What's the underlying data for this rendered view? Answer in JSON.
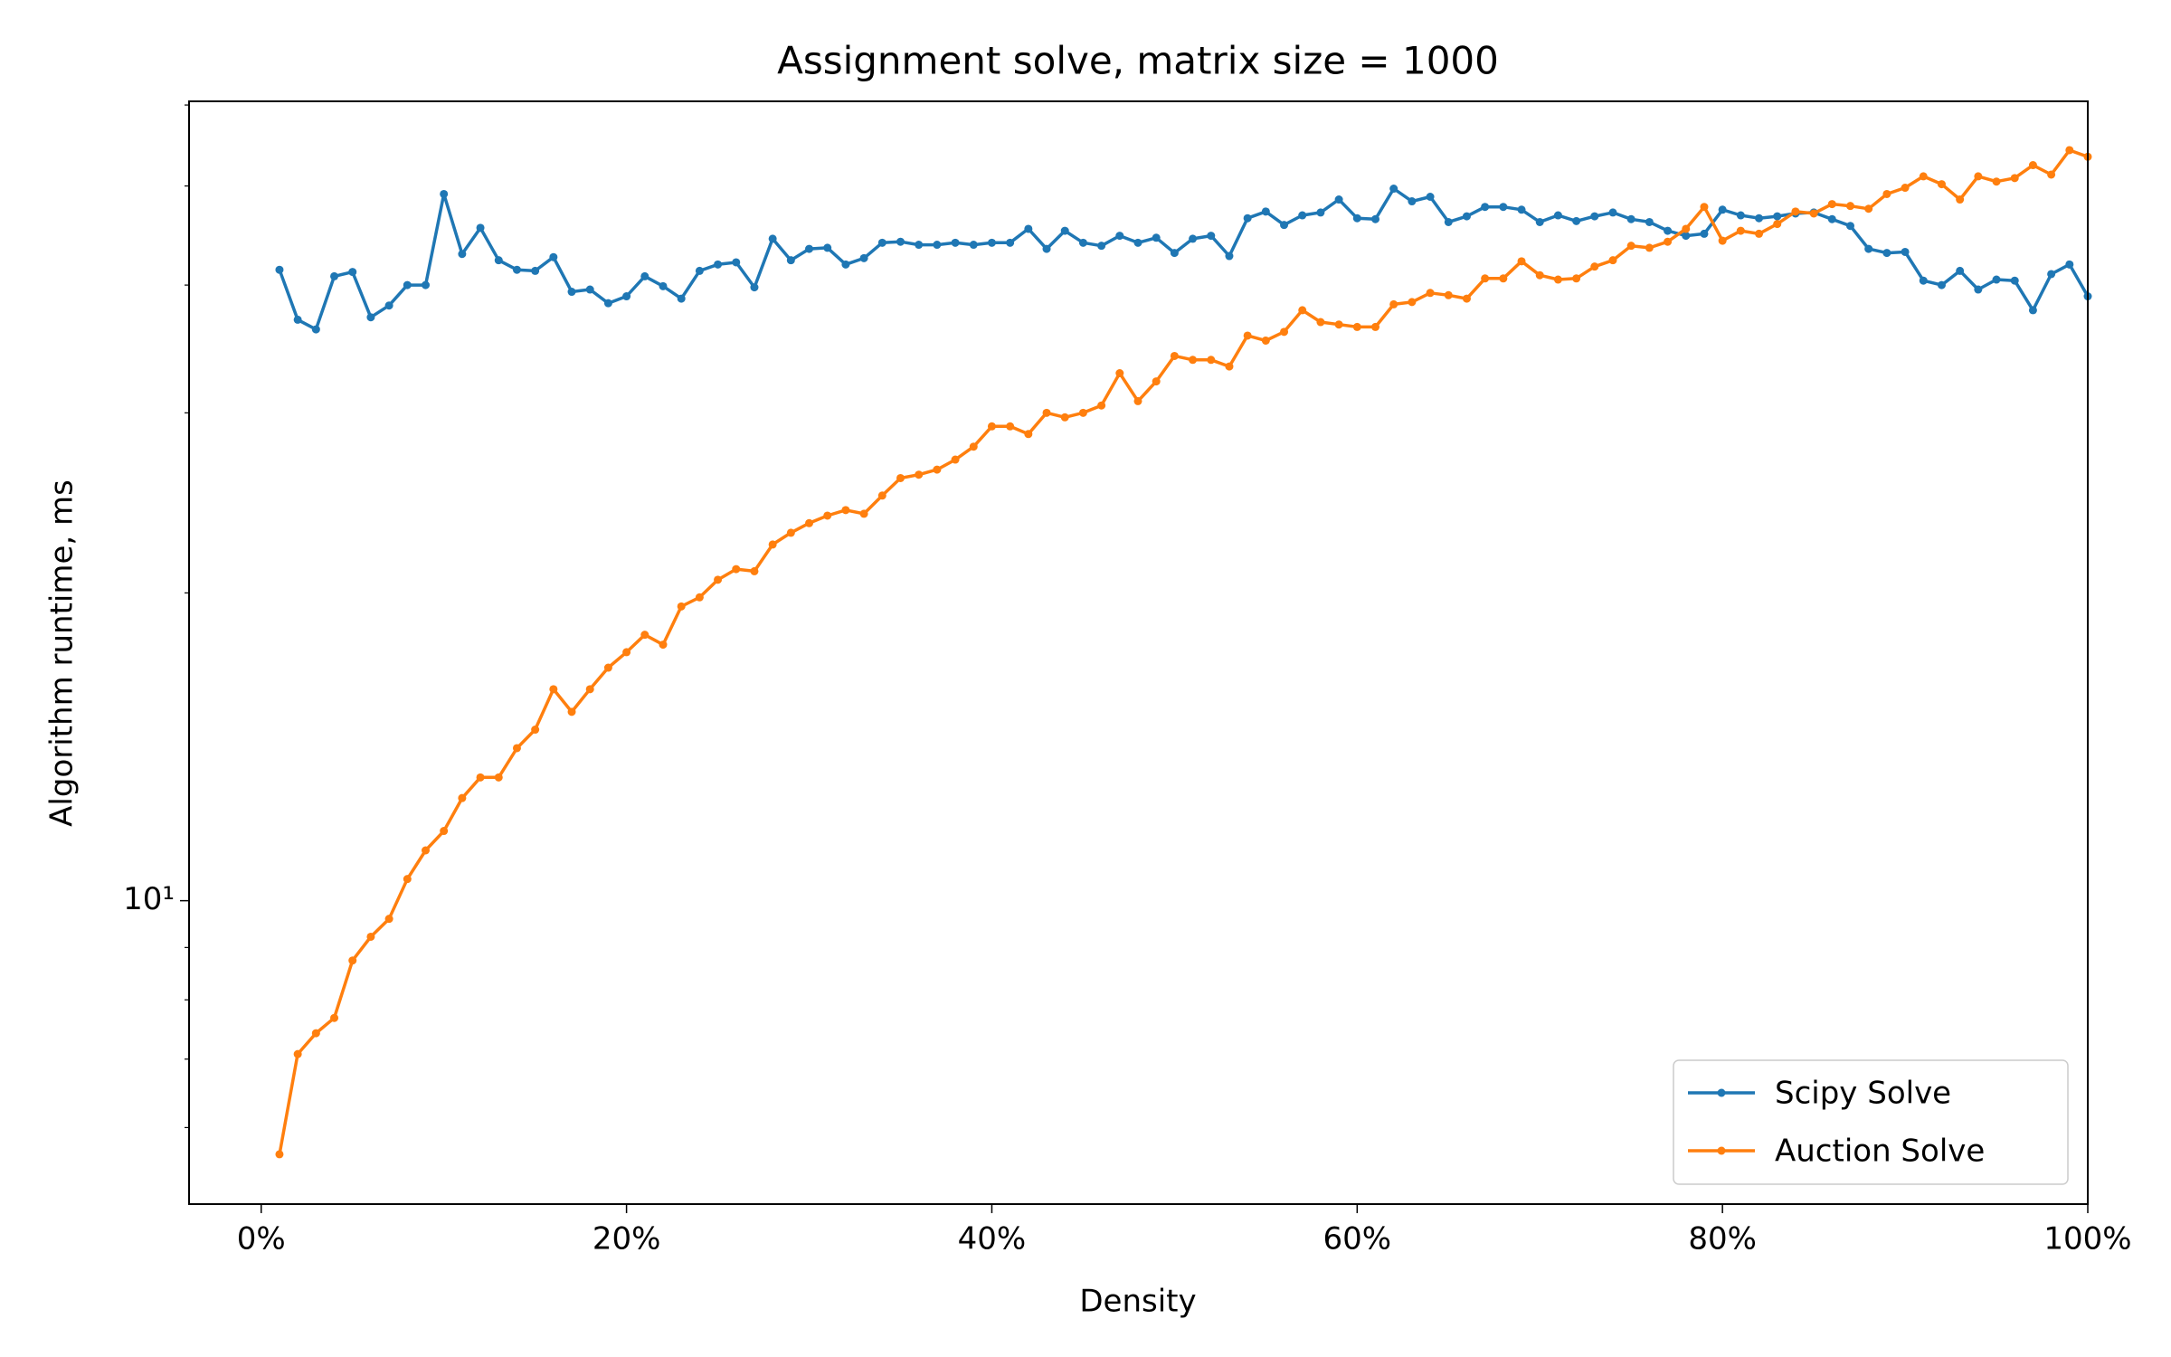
{
  "chart_data": {
    "type": "line",
    "title": "Assignment solve, matrix size = 1000",
    "xlabel": "Density",
    "ylabel": "Algorithm runtime, ms",
    "x": [
      1,
      2,
      3,
      4,
      5,
      6,
      7,
      8,
      9,
      10,
      11,
      12,
      13,
      14,
      15,
      16,
      17,
      18,
      19,
      20,
      21,
      22,
      23,
      24,
      25,
      26,
      27,
      28,
      29,
      30,
      31,
      32,
      33,
      34,
      35,
      36,
      37,
      38,
      39,
      40,
      41,
      42,
      43,
      44,
      45,
      46,
      47,
      48,
      49,
      50,
      51,
      52,
      53,
      54,
      55,
      56,
      57,
      58,
      59,
      60,
      61,
      62,
      63,
      64,
      65,
      66,
      67,
      68,
      69,
      70,
      71,
      72,
      73,
      74,
      75,
      76,
      77,
      78,
      79,
      80,
      81,
      82,
      83,
      84,
      85,
      86,
      87,
      88,
      89,
      90,
      91,
      92,
      93,
      94,
      95,
      96,
      97,
      98,
      99,
      100
    ],
    "series": [
      {
        "name": "Scipy Solve",
        "color": "#1f77b4",
        "values": [
          41.4,
          37.0,
          36.2,
          40.8,
          41.2,
          37.2,
          38.2,
          40.0,
          40.0,
          49.1,
          42.9,
          45.5,
          42.3,
          41.4,
          41.3,
          42.6,
          39.4,
          39.6,
          38.4,
          39.0,
          40.8,
          39.9,
          38.8,
          41.3,
          41.9,
          42.1,
          39.8,
          44.4,
          42.3,
          43.4,
          43.5,
          41.9,
          42.5,
          44.0,
          44.1,
          43.8,
          43.8,
          44.0,
          43.8,
          44.0,
          44.0,
          45.4,
          43.4,
          45.2,
          44.0,
          43.7,
          44.7,
          44.0,
          44.5,
          43.0,
          44.4,
          44.7,
          42.7,
          46.5,
          47.2,
          45.8,
          46.8,
          47.1,
          48.5,
          46.5,
          46.4,
          49.7,
          48.3,
          48.8,
          46.1,
          46.7,
          47.7,
          47.7,
          47.4,
          46.1,
          46.8,
          46.2,
          46.7,
          47.1,
          46.4,
          46.1,
          45.2,
          44.7,
          44.9,
          47.4,
          46.8,
          46.5,
          46.7,
          47.0,
          47.1,
          46.4,
          45.7,
          43.4,
          43.0,
          43.1,
          40.4,
          40.0,
          41.3,
          39.6,
          40.5,
          40.4,
          37.8,
          41.0,
          41.9,
          39.0
        ]
      },
      {
        "name": "Auction Solve",
        "color": "#ff7f0e",
        "values": [
          5.65,
          7.08,
          7.42,
          7.68,
          8.74,
          9.22,
          9.6,
          10.5,
          11.2,
          11.7,
          12.6,
          13.2,
          13.2,
          14.1,
          14.7,
          16.1,
          15.3,
          16.1,
          16.9,
          17.5,
          18.2,
          17.8,
          19.4,
          19.8,
          20.6,
          21.1,
          21.0,
          22.3,
          22.9,
          23.4,
          23.8,
          24.1,
          23.9,
          24.9,
          25.9,
          26.1,
          26.4,
          27.0,
          27.8,
          29.1,
          29.1,
          28.6,
          30.0,
          29.7,
          30.0,
          30.5,
          32.8,
          30.8,
          32.2,
          34.1,
          33.8,
          33.8,
          33.3,
          35.7,
          35.3,
          36.0,
          37.8,
          36.8,
          36.6,
          36.4,
          36.4,
          38.3,
          38.5,
          39.3,
          39.1,
          38.8,
          40.6,
          40.6,
          42.2,
          40.9,
          40.5,
          40.6,
          41.7,
          42.3,
          43.7,
          43.5,
          44.1,
          45.4,
          47.7,
          44.2,
          45.2,
          44.9,
          45.9,
          47.2,
          47.0,
          48.0,
          47.8,
          47.5,
          49.1,
          49.8,
          51.1,
          50.2,
          48.5,
          51.1,
          50.5,
          50.9,
          52.4,
          51.3,
          54.2,
          53.4
        ]
      }
    ],
    "xlim": [
      -3.95,
      100
    ],
    "xticks": [
      {
        "value": 0,
        "label": "0%"
      },
      {
        "value": 20,
        "label": "20%"
      },
      {
        "value": 40,
        "label": "40%"
      },
      {
        "value": 60,
        "label": "60%"
      },
      {
        "value": 80,
        "label": "80%"
      },
      {
        "value": 100,
        "label": "100%"
      }
    ],
    "ylim": [
      5.05,
      60.5
    ],
    "log_y": true,
    "yticks": [
      {
        "value": 10,
        "label": "10¹"
      }
    ],
    "yminorticks": [
      6,
      7,
      8,
      9,
      20,
      30,
      40,
      50,
      60
    ],
    "grid": false,
    "legend": "lower right"
  }
}
